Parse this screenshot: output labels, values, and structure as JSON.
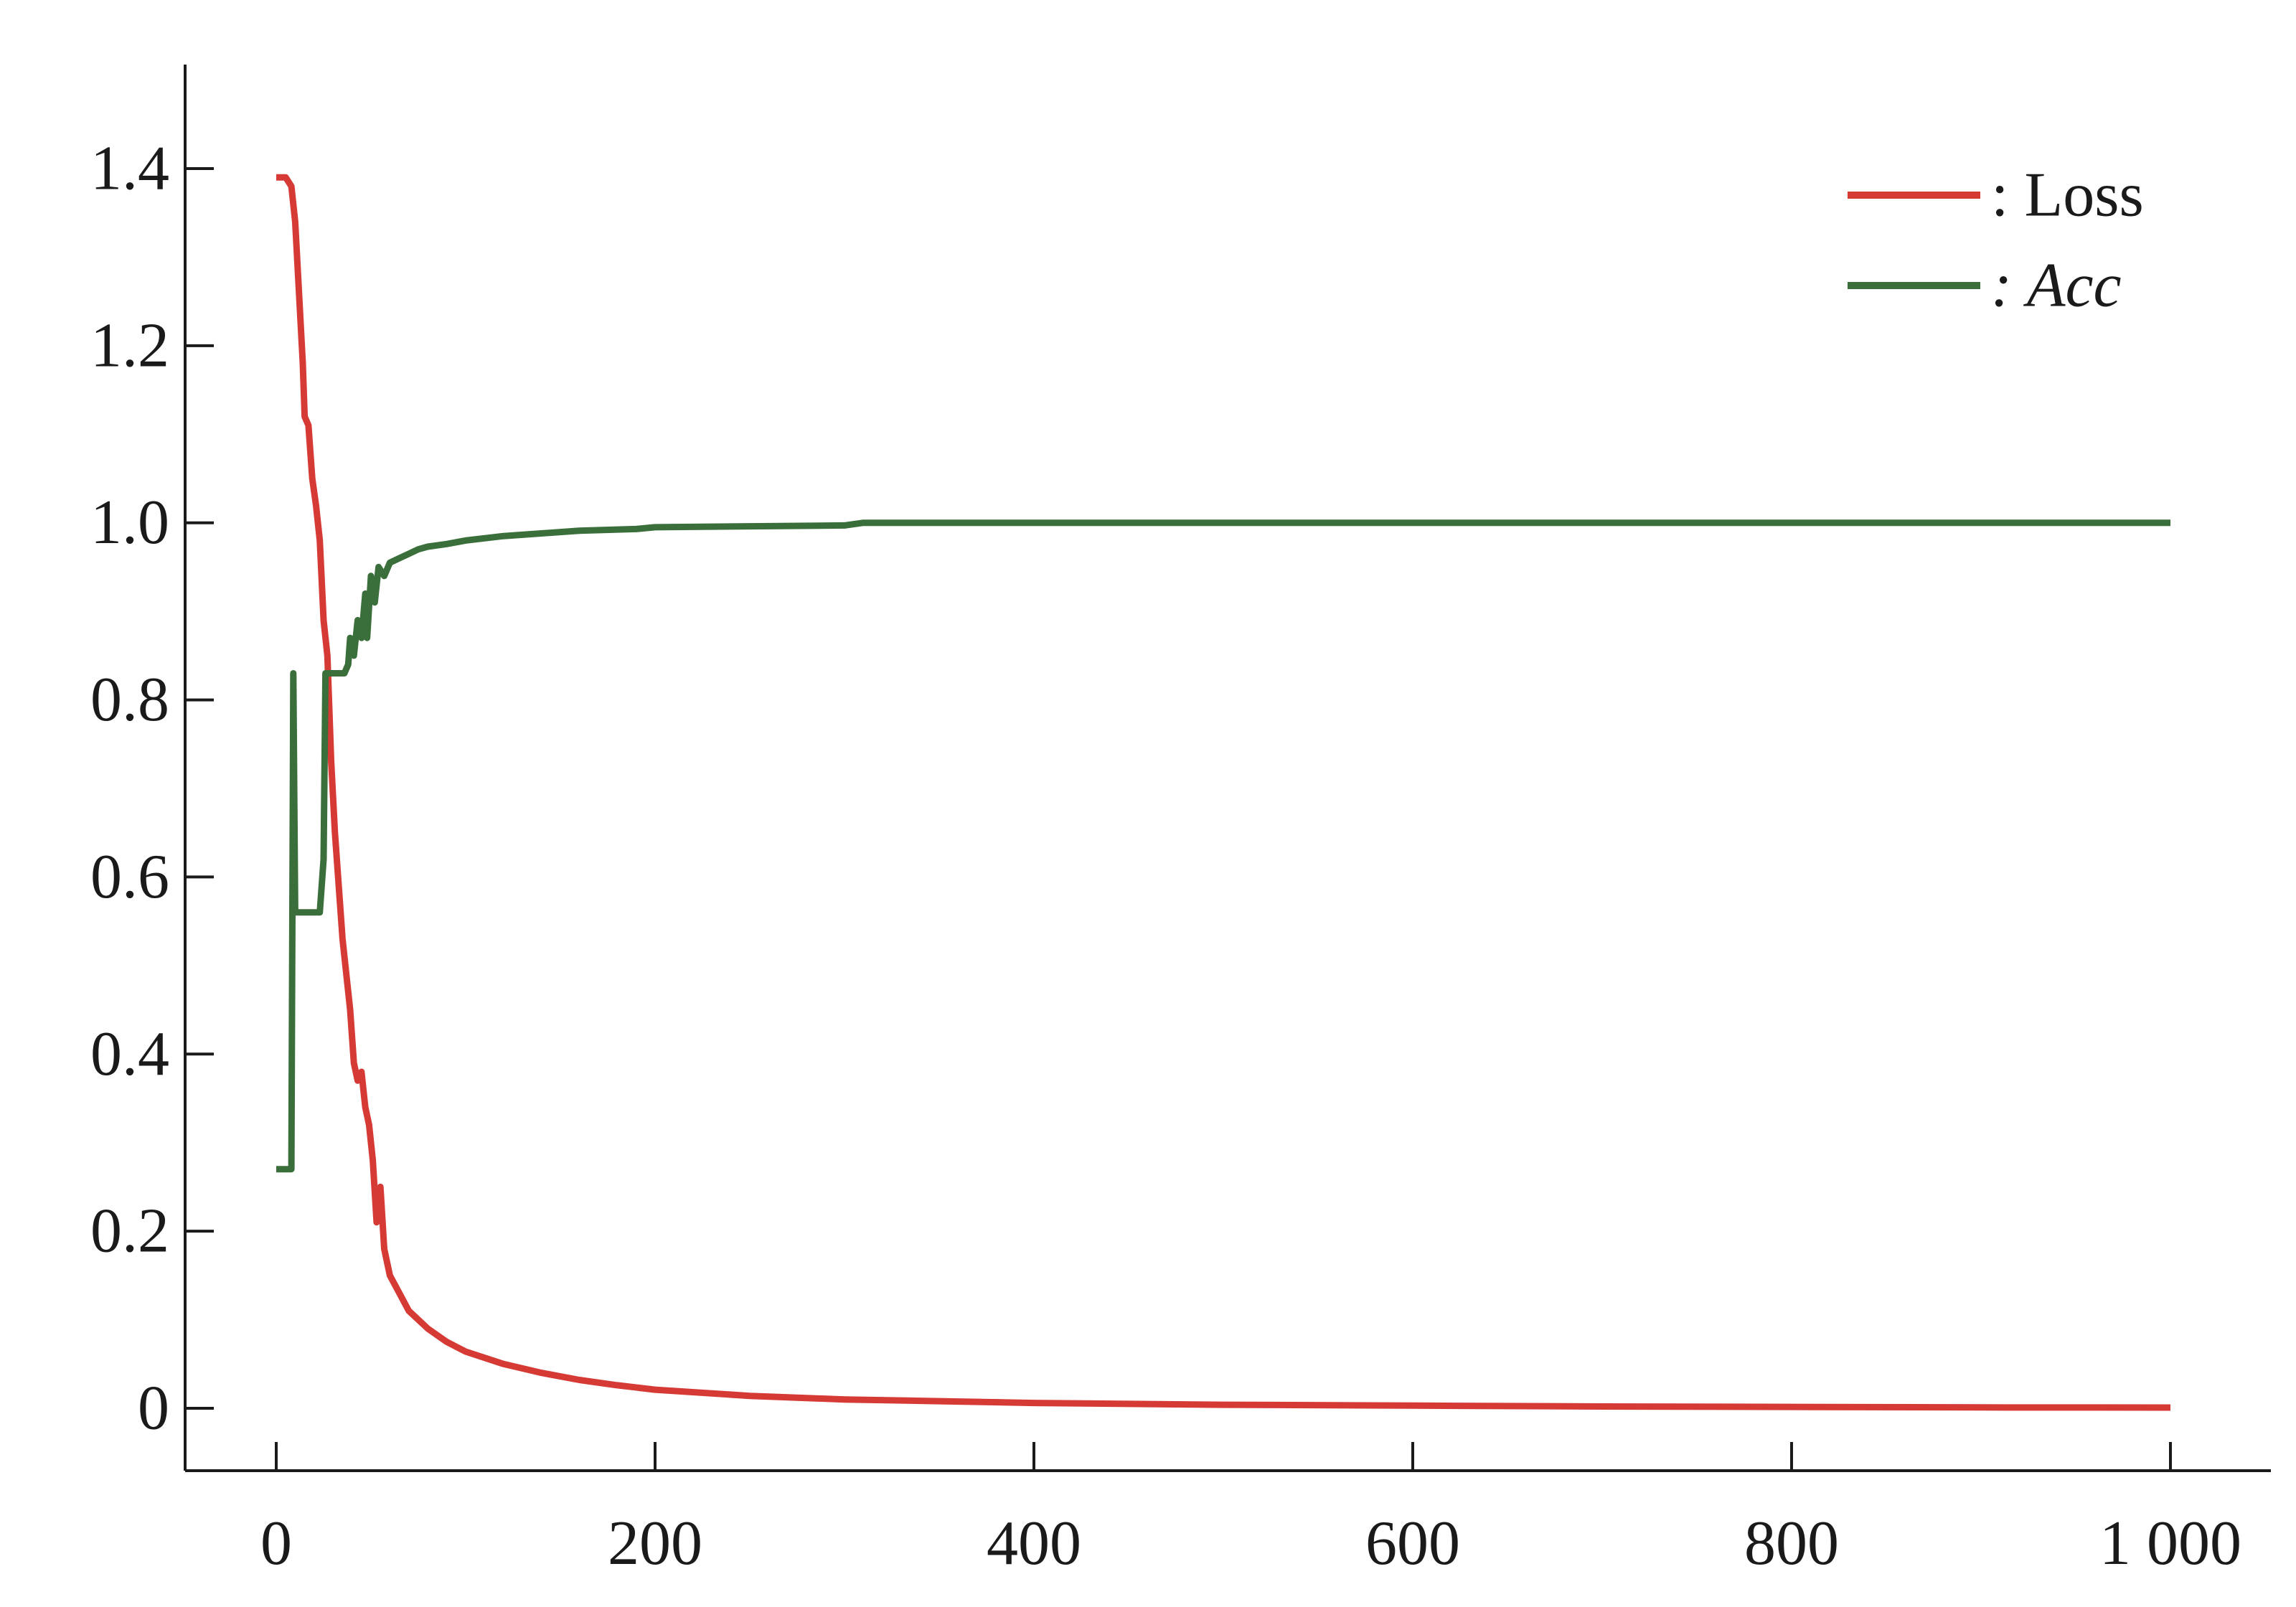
{
  "chart_data": {
    "type": "line",
    "title": "",
    "xlabel": "",
    "ylabel": "",
    "xlim": [
      0,
      1000
    ],
    "ylim": [
      0,
      1.4
    ],
    "x_ticks": [
      0,
      200,
      400,
      600,
      800,
      1000
    ],
    "x_tick_labels": [
      "0",
      "200",
      "400",
      "600",
      "800",
      "1 000"
    ],
    "y_ticks": [
      0,
      0.2,
      0.4,
      0.6,
      0.8,
      1.0,
      1.2,
      1.4
    ],
    "y_tick_labels": [
      "0",
      "0.2",
      "0.4",
      "0.6",
      "0.8",
      "1.0",
      "1.2",
      "1.4"
    ],
    "grid": false,
    "legend_position": "top-right",
    "series": [
      {
        "name": "Loss",
        "legend_label": ": Loss",
        "legend_italic": false,
        "color": "#d63a35",
        "points": [
          [
            0,
            1.39
          ],
          [
            5,
            1.39
          ],
          [
            8,
            1.38
          ],
          [
            10,
            1.34
          ],
          [
            12,
            1.26
          ],
          [
            14,
            1.18
          ],
          [
            15,
            1.12
          ],
          [
            17,
            1.11
          ],
          [
            19,
            1.05
          ],
          [
            21,
            1.02
          ],
          [
            23,
            0.98
          ],
          [
            25,
            0.89
          ],
          [
            27,
            0.85
          ],
          [
            29,
            0.73
          ],
          [
            31,
            0.65
          ],
          [
            33,
            0.59
          ],
          [
            35,
            0.53
          ],
          [
            37,
            0.49
          ],
          [
            39,
            0.45
          ],
          [
            41,
            0.39
          ],
          [
            43,
            0.37
          ],
          [
            45,
            0.38
          ],
          [
            47,
            0.34
          ],
          [
            49,
            0.32
          ],
          [
            51,
            0.28
          ],
          [
            53,
            0.21
          ],
          [
            55,
            0.25
          ],
          [
            57,
            0.18
          ],
          [
            60,
            0.15
          ],
          [
            65,
            0.13
          ],
          [
            70,
            0.11
          ],
          [
            80,
            0.09
          ],
          [
            90,
            0.075
          ],
          [
            100,
            0.064
          ],
          [
            120,
            0.05
          ],
          [
            140,
            0.04
          ],
          [
            160,
            0.032
          ],
          [
            180,
            0.026
          ],
          [
            200,
            0.021
          ],
          [
            250,
            0.014
          ],
          [
            300,
            0.01
          ],
          [
            350,
            0.008
          ],
          [
            400,
            0.006
          ],
          [
            500,
            0.004
          ],
          [
            600,
            0.003
          ],
          [
            700,
            0.002
          ],
          [
            800,
            0.0015
          ],
          [
            900,
            0.001
          ],
          [
            1000,
            0.0008
          ]
        ]
      },
      {
        "name": "Acc",
        "legend_label": ": Acc",
        "legend_italic": true,
        "color": "#3a6e3a",
        "points": [
          [
            0,
            0.27
          ],
          [
            8,
            0.27
          ],
          [
            9,
            0.83
          ],
          [
            10,
            0.56
          ],
          [
            23,
            0.56
          ],
          [
            25,
            0.62
          ],
          [
            26,
            0.83
          ],
          [
            36,
            0.83
          ],
          [
            38,
            0.84
          ],
          [
            39,
            0.87
          ],
          [
            41,
            0.85
          ],
          [
            43,
            0.89
          ],
          [
            45,
            0.87
          ],
          [
            47,
            0.92
          ],
          [
            48,
            0.87
          ],
          [
            50,
            0.94
          ],
          [
            52,
            0.91
          ],
          [
            54,
            0.95
          ],
          [
            57,
            0.94
          ],
          [
            60,
            0.955
          ],
          [
            65,
            0.96
          ],
          [
            70,
            0.965
          ],
          [
            75,
            0.97
          ],
          [
            80,
            0.973
          ],
          [
            90,
            0.976
          ],
          [
            100,
            0.98
          ],
          [
            120,
            0.985
          ],
          [
            140,
            0.988
          ],
          [
            160,
            0.991
          ],
          [
            190,
            0.993
          ],
          [
            200,
            0.995
          ],
          [
            300,
            0.997
          ],
          [
            310,
            1.0
          ],
          [
            1000,
            1.0
          ]
        ]
      }
    ]
  }
}
